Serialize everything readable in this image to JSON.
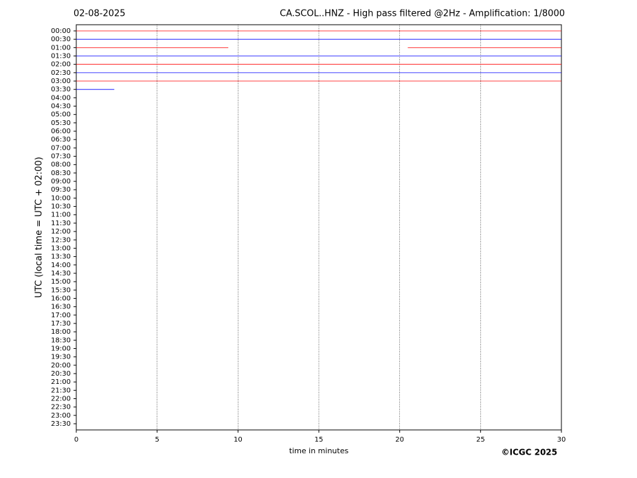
{
  "chart_data": {
    "type": "helicorder",
    "date": "02-08-2025",
    "title": "CA.SCOL..HNZ - High pass filtered @2Hz - Amplification: 1/8000",
    "y_label": "UTC (local time = UTC + 02:00)",
    "x_label": "time in minutes",
    "credit": "©ICGC 2025",
    "categories": [
      "00:00",
      "00:30",
      "01:00",
      "01:30",
      "02:00",
      "02:30",
      "03:00",
      "03:30",
      "04:00",
      "04:30",
      "05:00",
      "05:30",
      "06:00",
      "06:30",
      "07:00",
      "07:30",
      "08:00",
      "08:30",
      "09:00",
      "09:30",
      "10:00",
      "10:30",
      "11:00",
      "11:30",
      "12:00",
      "12:30",
      "13:00",
      "13:30",
      "14:00",
      "14:30",
      "15:00",
      "15:30",
      "16:00",
      "16:30",
      "17:00",
      "17:30",
      "18:00",
      "18:30",
      "19:00",
      "19:30",
      "20:00",
      "20:30",
      "21:00",
      "21:30",
      "22:00",
      "22:30",
      "23:00",
      "23:30"
    ],
    "segments": [
      [
        [
          0,
          30
        ]
      ],
      [
        [
          0,
          30
        ]
      ],
      [
        [
          0,
          9.4
        ],
        [
          20.5,
          30
        ]
      ],
      [
        [
          0,
          30
        ]
      ],
      [
        [
          0,
          30
        ]
      ],
      [
        [
          0,
          30
        ]
      ],
      [
        [
          0,
          30
        ]
      ],
      [
        [
          0,
          2.35
        ]
      ],
      null,
      null,
      null,
      null,
      null,
      null,
      null,
      null,
      null,
      null,
      null,
      null,
      null,
      null,
      null,
      null,
      null,
      null,
      null,
      null,
      null,
      null,
      null,
      null,
      null,
      null,
      null,
      null,
      null,
      null,
      null,
      null,
      null,
      null,
      null,
      null,
      null,
      null,
      null,
      null
    ],
    "colors": [
      "#ff0000",
      "#0000ff"
    ],
    "xlim": [
      0,
      30
    ],
    "xticks": [
      0,
      5,
      10,
      15,
      20,
      25,
      30
    ],
    "grid": true
  }
}
